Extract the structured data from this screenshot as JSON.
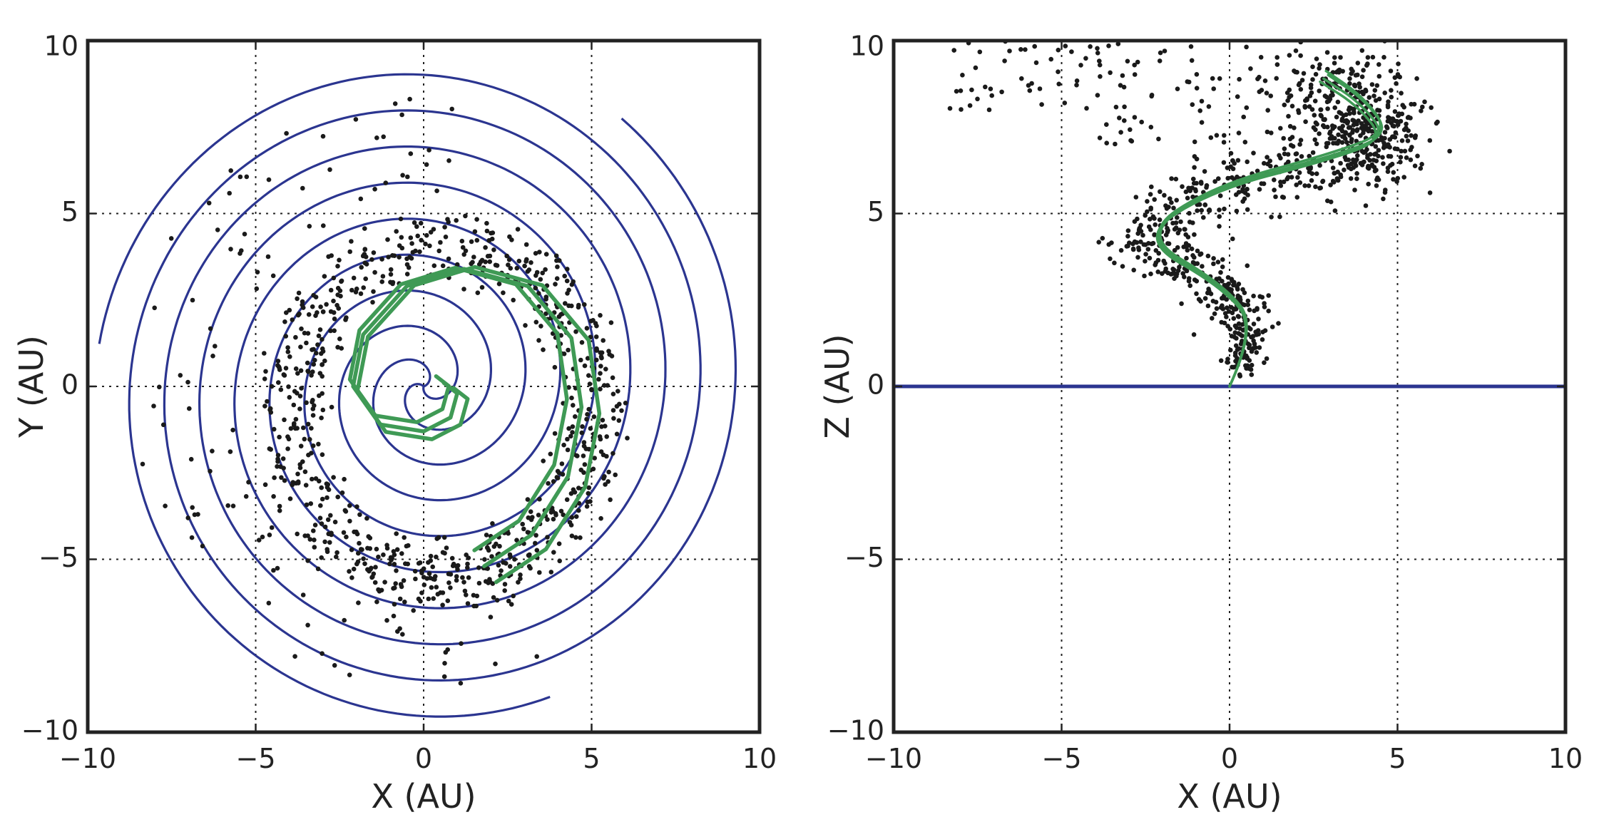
{
  "chart_data": [
    {
      "panel": "left",
      "type": "scatter",
      "xlabel": "X (AU)",
      "ylabel": "Y (AU)",
      "xlim": [
        -10,
        10
      ],
      "ylim": [
        -10,
        10
      ],
      "xticks": [
        -10,
        -5,
        0,
        5,
        10
      ],
      "yticks": [
        -10,
        -5,
        0,
        5,
        10
      ],
      "xtick_labels": [
        "−10",
        "−5",
        "0",
        "5",
        "10"
      ],
      "ytick_labels": [
        "−10",
        "−5",
        "0",
        "5",
        "10"
      ],
      "grid": true,
      "colors": {
        "spiral": "#2b3590",
        "trajectory": "#3f9a55",
        "particles": "#1a1a1a"
      },
      "spiral_reference": {
        "arms": 3,
        "growth_au_per_radian": 0.5,
        "max_radius_au": 10,
        "turns_per_arm": 3.1
      },
      "particle_ring": {
        "center": [
          0.6,
          -0.7
        ],
        "radius_inner_au": 4.0,
        "radius_outer_au": 5.6,
        "count": 800,
        "outer_scatter_count": 110
      },
      "trajectory_samples": [
        [
          0.6,
          0.1
        ],
        [
          1.0,
          -0.2
        ],
        [
          0.8,
          -0.9
        ],
        [
          0.0,
          -1.3
        ],
        [
          -1.3,
          -1.1
        ],
        [
          -2.1,
          0.0
        ],
        [
          -1.8,
          1.5
        ],
        [
          -0.5,
          2.9
        ],
        [
          1.2,
          3.4
        ],
        [
          3.1,
          2.9
        ],
        [
          4.4,
          1.4
        ],
        [
          4.7,
          -0.6
        ],
        [
          4.3,
          -2.6
        ],
        [
          3.2,
          -4.3
        ],
        [
          1.8,
          -5.2
        ]
      ]
    },
    {
      "panel": "right",
      "type": "scatter",
      "xlabel": "X (AU)",
      "ylabel": "Z (AU)",
      "xlim": [
        -10,
        10
      ],
      "ylim": [
        -10,
        10
      ],
      "xticks": [
        -10,
        -5,
        0,
        5,
        10
      ],
      "yticks": [
        -10,
        -5,
        0,
        5,
        10
      ],
      "xtick_labels": [
        "−10",
        "−5",
        "0",
        "5",
        "10"
      ],
      "ytick_labels": [
        "−10",
        "−5",
        "0",
        "5",
        "10"
      ],
      "grid": true,
      "colors": {
        "disk": "#2b3590",
        "trajectory": "#3f9a55",
        "particles": "#1a1a1a"
      },
      "disk_plane_z": 0,
      "trajectory_samples": [
        [
          0.0,
          0.0
        ],
        [
          0.8,
          1.7
        ],
        [
          -0.2,
          2.9
        ],
        [
          -2.7,
          4.3
        ],
        [
          -0.5,
          5.7
        ],
        [
          3.0,
          6.6
        ],
        [
          4.7,
          7.2
        ],
        [
          3.9,
          8.2
        ],
        [
          2.8,
          8.9
        ]
      ],
      "particle_stream": {
        "count": 950,
        "upper_scatter_count": 170
      }
    }
  ]
}
